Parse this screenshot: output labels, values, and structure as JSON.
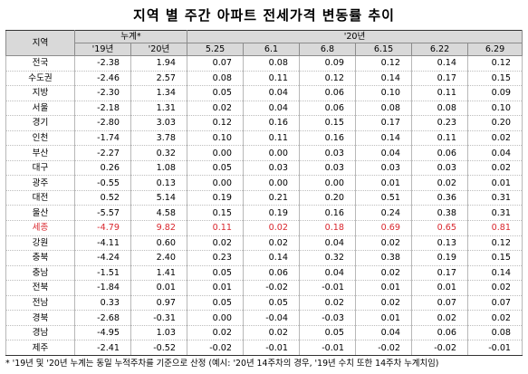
{
  "title": "지역 별 주간 아파트 전세가격 변동률 추이",
  "header": {
    "region": "지역",
    "cumulative": "누계*",
    "year_label": "'20년",
    "sub": [
      "'19년",
      "'20년",
      "5.25",
      "6.1",
      "6.8",
      "6.15",
      "6.22",
      "6.29"
    ]
  },
  "rows": [
    {
      "region": "전국",
      "values": [
        "-2.38",
        "1.94",
        "0.07",
        "0.08",
        "0.09",
        "0.12",
        "0.14",
        "0.12"
      ]
    },
    {
      "region": "수도권",
      "values": [
        "-2.46",
        "2.57",
        "0.08",
        "0.11",
        "0.12",
        "0.14",
        "0.17",
        "0.15"
      ]
    },
    {
      "region": "지방",
      "values": [
        "-2.30",
        "1.34",
        "0.05",
        "0.04",
        "0.06",
        "0.10",
        "0.11",
        "0.09"
      ]
    },
    {
      "region": "서울",
      "values": [
        "-2.18",
        "1.31",
        "0.02",
        "0.04",
        "0.06",
        "0.08",
        "0.08",
        "0.10"
      ]
    },
    {
      "region": "경기",
      "values": [
        "-2.80",
        "3.03",
        "0.12",
        "0.16",
        "0.15",
        "0.17",
        "0.23",
        "0.20"
      ]
    },
    {
      "region": "인천",
      "values": [
        "-1.74",
        "3.78",
        "0.10",
        "0.11",
        "0.16",
        "0.14",
        "0.11",
        "0.02"
      ]
    },
    {
      "region": "부산",
      "values": [
        "-2.27",
        "0.32",
        "0.00",
        "0.00",
        "0.03",
        "0.04",
        "0.06",
        "0.04"
      ]
    },
    {
      "region": "대구",
      "values": [
        "0.26",
        "1.08",
        "0.05",
        "0.03",
        "0.03",
        "0.03",
        "0.03",
        "0.02"
      ]
    },
    {
      "region": "광주",
      "values": [
        "-0.55",
        "0.13",
        "0.00",
        "0.00",
        "0.00",
        "0.01",
        "0.02",
        "0.01"
      ]
    },
    {
      "region": "대전",
      "values": [
        "0.52",
        "5.14",
        "0.19",
        "0.21",
        "0.20",
        "0.51",
        "0.36",
        "0.31"
      ]
    },
    {
      "region": "울산",
      "values": [
        "-5.57",
        "4.58",
        "0.15",
        "0.19",
        "0.16",
        "0.24",
        "0.38",
        "0.31"
      ]
    },
    {
      "region": "세종",
      "values": [
        "-4.79",
        "9.82",
        "0.11",
        "0.02",
        "0.18",
        "0.69",
        "0.65",
        "0.81"
      ]
    },
    {
      "region": "강원",
      "values": [
        "-4.11",
        "0.60",
        "0.02",
        "0.02",
        "0.04",
        "0.02",
        "0.13",
        "0.12"
      ]
    },
    {
      "region": "충북",
      "values": [
        "-4.24",
        "2.40",
        "0.23",
        "0.14",
        "0.32",
        "0.38",
        "0.19",
        "0.15"
      ]
    },
    {
      "region": "충남",
      "values": [
        "-1.51",
        "1.41",
        "0.05",
        "0.06",
        "0.04",
        "0.02",
        "0.17",
        "0.14"
      ]
    },
    {
      "region": "전북",
      "values": [
        "-1.84",
        "0.01",
        "0.01",
        "-0.02",
        "-0.01",
        "0.01",
        "0.01",
        "0.02"
      ]
    },
    {
      "region": "전남",
      "values": [
        "0.33",
        "0.97",
        "0.05",
        "0.05",
        "0.02",
        "0.02",
        "0.07",
        "0.07"
      ]
    },
    {
      "region": "경북",
      "values": [
        "-2.68",
        "-0.31",
        "0.00",
        "-0.04",
        "-0.03",
        "0.01",
        "0.02",
        "0.02"
      ]
    },
    {
      "region": "경남",
      "values": [
        "-4.95",
        "1.03",
        "0.02",
        "0.02",
        "0.05",
        "0.04",
        "0.06",
        "0.08"
      ]
    },
    {
      "region": "제주",
      "values": [
        "-2.41",
        "-0.52",
        "-0.02",
        "-0.01",
        "-0.01",
        "-0.02",
        "-0.02",
        "-0.01"
      ]
    }
  ],
  "highlight_region": "세종",
  "highlight_color": "#d9272e",
  "footnote": "* '19년 및 '20년 누계는 동일 누적주차를 기준으로 산정 (예시: '20년 14주차의 경우, '19년 수치 또한 14주차 누계치임)"
}
